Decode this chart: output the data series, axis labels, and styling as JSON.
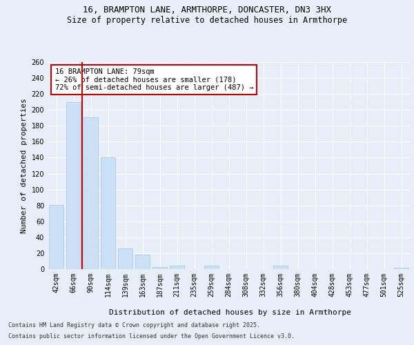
{
  "title1": "16, BRAMPTON LANE, ARMTHORPE, DONCASTER, DN3 3HX",
  "title2": "Size of property relative to detached houses in Armthorpe",
  "xlabel": "Distribution of detached houses by size in Armthorpe",
  "ylabel": "Number of detached properties",
  "categories": [
    "42sqm",
    "66sqm",
    "90sqm",
    "114sqm",
    "139sqm",
    "163sqm",
    "187sqm",
    "211sqm",
    "235sqm",
    "259sqm",
    "284sqm",
    "308sqm",
    "332sqm",
    "356sqm",
    "380sqm",
    "404sqm",
    "428sqm",
    "453sqm",
    "477sqm",
    "501sqm",
    "525sqm"
  ],
  "values": [
    81,
    210,
    191,
    140,
    26,
    18,
    3,
    4,
    0,
    4,
    0,
    0,
    0,
    4,
    0,
    0,
    0,
    0,
    0,
    0,
    2
  ],
  "bar_color": "#cce0f5",
  "bar_edge_color": "#a0c4e8",
  "vline_x": 1.5,
  "vline_color": "#cc0000",
  "annotation_title": "16 BRAMPTON LANE: 79sqm",
  "annotation_line1": "← 26% of detached houses are smaller (178)",
  "annotation_line2": "72% of semi-detached houses are larger (487) →",
  "annotation_box_color": "#ffffff",
  "annotation_box_edge": "#cc0000",
  "ylim": [
    0,
    260
  ],
  "yticks": [
    0,
    20,
    40,
    60,
    80,
    100,
    120,
    140,
    160,
    180,
    200,
    220,
    240,
    260
  ],
  "bg_color": "#e8eef7",
  "plot_bg_color": "#e8eef7",
  "footer1": "Contains HM Land Registry data © Crown copyright and database right 2025.",
  "footer2": "Contains public sector information licensed under the Open Government Licence v3.0.",
  "title1_fontsize": 9,
  "title2_fontsize": 8.5,
  "xlabel_fontsize": 8,
  "ylabel_fontsize": 8,
  "tick_fontsize": 7,
  "footer_fontsize": 6,
  "annotation_fontsize": 7.5
}
